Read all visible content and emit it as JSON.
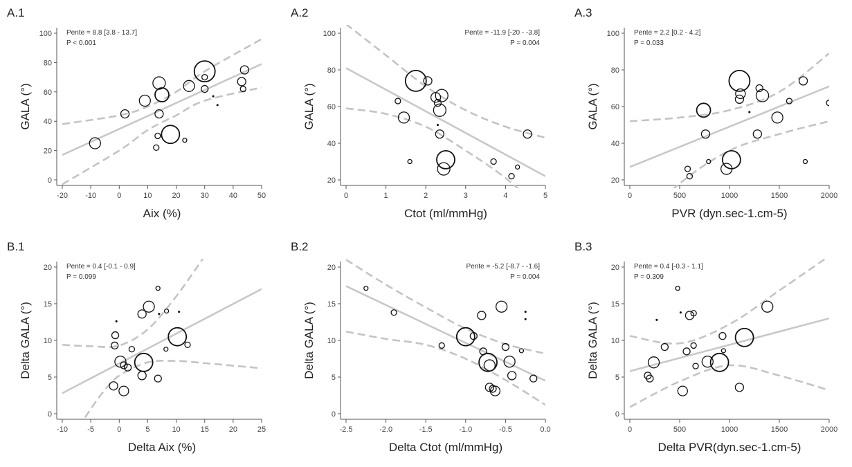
{
  "chart_data": [
    {
      "id": "A.1",
      "label": "A.1",
      "type": "scatter",
      "xlabel": "Aix (%)",
      "ylabel": "GALA (°)",
      "xlim": [
        -20,
        50
      ],
      "ylim": [
        0,
        100
      ],
      "xticks": [
        -20,
        -10,
        0,
        10,
        20,
        30,
        40,
        50
      ],
      "yticks": [
        0,
        20,
        40,
        60,
        80,
        100
      ],
      "stats": [
        "Pente = 8.8 [3.8 - 13.7]",
        "P < 0.001"
      ],
      "stats_position": "top-left",
      "fit": [
        [
          -20,
          17
        ],
        [
          50,
          79
        ]
      ],
      "ci_upper": [
        [
          -20,
          38
        ],
        [
          0,
          44
        ],
        [
          10,
          50
        ],
        [
          20,
          60
        ],
        [
          30,
          74
        ],
        [
          50,
          96
        ]
      ],
      "ci_lower": [
        [
          -20,
          -3
        ],
        [
          0,
          20
        ],
        [
          10,
          34
        ],
        [
          20,
          44
        ],
        [
          30,
          54
        ],
        [
          50,
          63
        ]
      ],
      "points": [
        {
          "x": -8.5,
          "y": 25,
          "size": 8
        },
        {
          "x": 2,
          "y": 45,
          "size": 6
        },
        {
          "x": 9,
          "y": 54,
          "size": 8
        },
        {
          "x": 14,
          "y": 66,
          "size": 9
        },
        {
          "x": 15,
          "y": 58,
          "size": 10
        },
        {
          "x": 14,
          "y": 45,
          "size": 6
        },
        {
          "x": 13.5,
          "y": 30,
          "size": 4
        },
        {
          "x": 13,
          "y": 22,
          "size": 4
        },
        {
          "x": 18,
          "y": 31,
          "size": 13
        },
        {
          "x": 23,
          "y": 27,
          "size": 3
        },
        {
          "x": 24.5,
          "y": 64,
          "size": 8
        },
        {
          "x": 30,
          "y": 74,
          "size": 15
        },
        {
          "x": 30,
          "y": 62,
          "size": 5
        },
        {
          "x": 30,
          "y": 70,
          "size": 4
        },
        {
          "x": 33,
          "y": 57,
          "size": 1
        },
        {
          "x": 34.5,
          "y": 51,
          "size": 1
        },
        {
          "x": 43,
          "y": 67,
          "size": 6
        },
        {
          "x": 44,
          "y": 75,
          "size": 6
        },
        {
          "x": 43.5,
          "y": 62,
          "size": 4
        }
      ]
    },
    {
      "id": "A.2",
      "label": "A.2",
      "type": "scatter",
      "xlabel": "Ctot (ml/mmHg)",
      "ylabel": "GALA (°)",
      "xlim": [
        0,
        5
      ],
      "ylim": [
        20,
        100
      ],
      "xticks": [
        0,
        1,
        2,
        3,
        4,
        5
      ],
      "yticks": [
        20,
        40,
        60,
        80,
        100
      ],
      "stats": [
        "Pente = -11.9 [-20 - -3.8]",
        "P = 0.004"
      ],
      "stats_position": "top-right",
      "fit": [
        [
          0,
          81
        ],
        [
          5,
          22
        ]
      ],
      "ci_upper": [
        [
          0,
          105
        ],
        [
          1,
          88
        ],
        [
          2,
          71
        ],
        [
          3,
          58
        ],
        [
          4,
          49
        ],
        [
          5,
          43
        ]
      ],
      "ci_lower": [
        [
          0,
          59
        ],
        [
          1,
          56
        ],
        [
          2,
          49
        ],
        [
          3,
          36
        ],
        [
          4,
          21
        ],
        [
          5,
          2
        ]
      ],
      "points": [
        {
          "x": 1.3,
          "y": 63,
          "size": 4
        },
        {
          "x": 1.45,
          "y": 54,
          "size": 8
        },
        {
          "x": 1.6,
          "y": 30,
          "size": 3
        },
        {
          "x": 1.75,
          "y": 74,
          "size": 15
        },
        {
          "x": 2.05,
          "y": 74,
          "size": 6
        },
        {
          "x": 2.25,
          "y": 65,
          "size": 7
        },
        {
          "x": 2.3,
          "y": 62,
          "size": 5
        },
        {
          "x": 2.4,
          "y": 66,
          "size": 9
        },
        {
          "x": 2.35,
          "y": 58,
          "size": 9
        },
        {
          "x": 2.35,
          "y": 45,
          "size": 6
        },
        {
          "x": 2.45,
          "y": 26,
          "size": 9
        },
        {
          "x": 2.5,
          "y": 31,
          "size": 13
        },
        {
          "x": 2.3,
          "y": 50,
          "size": 1
        },
        {
          "x": 3.7,
          "y": 30,
          "size": 4
        },
        {
          "x": 4.15,
          "y": 22,
          "size": 4
        },
        {
          "x": 4.3,
          "y": 27,
          "size": 3
        },
        {
          "x": 4.55,
          "y": 45,
          "size": 6
        }
      ]
    },
    {
      "id": "A.3",
      "label": "A.3",
      "type": "scatter",
      "xlabel": "PVR (dyn.sec-1.cm-5)",
      "ylabel": "GALA (°)",
      "xlim": [
        0,
        2000
      ],
      "ylim": [
        20,
        100
      ],
      "xticks": [
        0,
        500,
        1000,
        1500,
        2000
      ],
      "yticks": [
        20,
        40,
        60,
        80,
        100
      ],
      "stats": [
        "Pente = 2.2 [0.2 - 4.2]",
        "P = 0.033"
      ],
      "stats_position": "top-left",
      "fit": [
        [
          0,
          27
        ],
        [
          2000,
          71
        ]
      ],
      "ci_upper": [
        [
          0,
          52
        ],
        [
          500,
          54
        ],
        [
          1000,
          58
        ],
        [
          1500,
          68
        ],
        [
          2000,
          89
        ]
      ],
      "ci_lower": [
        [
          0,
          -8
        ],
        [
          500,
          18
        ],
        [
          1000,
          36
        ],
        [
          1500,
          45
        ],
        [
          2000,
          52
        ]
      ],
      "points": [
        {
          "x": 580,
          "y": 26,
          "size": 4
        },
        {
          "x": 600,
          "y": 22,
          "size": 4
        },
        {
          "x": 740,
          "y": 58,
          "size": 10
        },
        {
          "x": 760,
          "y": 45,
          "size": 6
        },
        {
          "x": 790,
          "y": 30,
          "size": 3
        },
        {
          "x": 970,
          "y": 26,
          "size": 8
        },
        {
          "x": 1020,
          "y": 31,
          "size": 13
        },
        {
          "x": 1100,
          "y": 74,
          "size": 15
        },
        {
          "x": 1100,
          "y": 64,
          "size": 6
        },
        {
          "x": 1110,
          "y": 67,
          "size": 7
        },
        {
          "x": 1200,
          "y": 57,
          "size": 1
        },
        {
          "x": 1280,
          "y": 45,
          "size": 6
        },
        {
          "x": 1300,
          "y": 70,
          "size": 5
        },
        {
          "x": 1330,
          "y": 66,
          "size": 9
        },
        {
          "x": 1480,
          "y": 54,
          "size": 8
        },
        {
          "x": 1600,
          "y": 63,
          "size": 4
        },
        {
          "x": 1740,
          "y": 74,
          "size": 6
        },
        {
          "x": 1760,
          "y": 30,
          "size": 3
        },
        {
          "x": 2000,
          "y": 62,
          "size": 4
        }
      ]
    },
    {
      "id": "B.1",
      "label": "B.1",
      "type": "scatter",
      "xlabel": "Delta Aix (%)",
      "ylabel": "Delta GALA (°)",
      "xlim": [
        -10,
        25
      ],
      "ylim": [
        0,
        20
      ],
      "xticks": [
        -10,
        -5,
        0,
        5,
        10,
        15,
        20,
        25
      ],
      "yticks": [
        0,
        5,
        10,
        15,
        20
      ],
      "stats": [
        "Pente = 0.4 [-0.1 - 0.9]",
        "P = 0.099"
      ],
      "stats_position": "top-left",
      "fit": [
        [
          -10,
          2.8
        ],
        [
          25,
          17
        ]
      ],
      "ci_upper": [
        [
          -10,
          9.4
        ],
        [
          -5,
          9.2
        ],
        [
          0,
          9.3
        ],
        [
          5,
          11.5
        ],
        [
          10,
          16
        ],
        [
          15,
          21.5
        ]
      ],
      "ci_lower": [
        [
          -6,
          -0.5
        ],
        [
          -3,
          2.8
        ],
        [
          0,
          5.2
        ],
        [
          5,
          7.0
        ],
        [
          10,
          7.2
        ],
        [
          15,
          6.9
        ],
        [
          25,
          6.2
        ]
      ],
      "points": [
        {
          "x": -1,
          "y": 3.8,
          "size": 6
        },
        {
          "x": 0.8,
          "y": 3.1,
          "size": 7
        },
        {
          "x": -0.8,
          "y": 9.3,
          "size": 5
        },
        {
          "x": -0.7,
          "y": 10.7,
          "size": 5
        },
        {
          "x": -0.5,
          "y": 12.6,
          "size": 1
        },
        {
          "x": 0.2,
          "y": 7.1,
          "size": 8
        },
        {
          "x": 0.8,
          "y": 6.6,
          "size": 5
        },
        {
          "x": 1.5,
          "y": 6.3,
          "size": 5
        },
        {
          "x": 2.2,
          "y": 8.8,
          "size": 4
        },
        {
          "x": 4,
          "y": 5.2,
          "size": 6
        },
        {
          "x": 4.3,
          "y": 7.0,
          "size": 13
        },
        {
          "x": 4.0,
          "y": 13.6,
          "size": 6
        },
        {
          "x": 5.2,
          "y": 14.6,
          "size": 8
        },
        {
          "x": 6.8,
          "y": 4.8,
          "size": 5
        },
        {
          "x": 6.8,
          "y": 17.1,
          "size": 3
        },
        {
          "x": 7.0,
          "y": 13.6,
          "size": 1
        },
        {
          "x": 8.2,
          "y": 8.8,
          "size": 3
        },
        {
          "x": 8.3,
          "y": 14.0,
          "size": 3
        },
        {
          "x": 10.2,
          "y": 10.5,
          "size": 13
        },
        {
          "x": 12,
          "y": 9.4,
          "size": 4
        },
        {
          "x": 10.5,
          "y": 13.9,
          "size": 1
        }
      ]
    },
    {
      "id": "B.2",
      "label": "B.2",
      "type": "scatter",
      "xlabel": "Delta Ctot (ml/mmHg)",
      "ylabel": "Delta GALA (°)",
      "xlim": [
        -2.5,
        0
      ],
      "ylim": [
        0,
        20
      ],
      "xticks": [
        -2.5,
        -2.0,
        -1.5,
        -1.0,
        -0.5,
        0.0
      ],
      "yticks": [
        0,
        5,
        10,
        15,
        20
      ],
      "stats": [
        "Pente = -5.2 [-8.7 - -1.6]",
        "P = 0.004"
      ],
      "stats_position": "top-right",
      "fit": [
        [
          -2.5,
          17.4
        ],
        [
          0,
          4.5
        ]
      ],
      "ci_upper": [
        [
          -2.5,
          21
        ],
        [
          -2.0,
          17.6
        ],
        [
          -1.5,
          14.5
        ],
        [
          -1.0,
          11.6
        ],
        [
          -0.5,
          9.5
        ],
        [
          0,
          8.2
        ]
      ],
      "ci_lower": [
        [
          -2.5,
          11.2
        ],
        [
          -2.0,
          10.2
        ],
        [
          -1.5,
          9.4
        ],
        [
          -1.0,
          7.5
        ],
        [
          -0.5,
          4.6
        ],
        [
          0,
          1.2
        ]
      ],
      "points": [
        {
          "x": -2.25,
          "y": 17.1,
          "size": 3
        },
        {
          "x": -1.9,
          "y": 13.8,
          "size": 4
        },
        {
          "x": -1.3,
          "y": 9.3,
          "size": 4
        },
        {
          "x": -1.0,
          "y": 10.5,
          "size": 13
        },
        {
          "x": -0.9,
          "y": 10.6,
          "size": 5
        },
        {
          "x": -0.8,
          "y": 13.4,
          "size": 6
        },
        {
          "x": -0.78,
          "y": 8.5,
          "size": 5
        },
        {
          "x": -0.72,
          "y": 7.0,
          "size": 13
        },
        {
          "x": -0.7,
          "y": 6.6,
          "size": 8
        },
        {
          "x": -0.7,
          "y": 3.6,
          "size": 6
        },
        {
          "x": -0.66,
          "y": 3.4,
          "size": 5
        },
        {
          "x": -0.63,
          "y": 3.1,
          "size": 7
        },
        {
          "x": -0.55,
          "y": 14.6,
          "size": 8
        },
        {
          "x": -0.5,
          "y": 9.1,
          "size": 5
        },
        {
          "x": -0.45,
          "y": 7.1,
          "size": 8
        },
        {
          "x": -0.42,
          "y": 5.2,
          "size": 6
        },
        {
          "x": -0.3,
          "y": 8.6,
          "size": 3
        },
        {
          "x": -0.25,
          "y": 13.9,
          "size": 1
        },
        {
          "x": -0.25,
          "y": 12.9,
          "size": 1
        },
        {
          "x": -0.15,
          "y": 4.8,
          "size": 5
        }
      ]
    },
    {
      "id": "B.3",
      "label": "B.3",
      "type": "scatter",
      "xlabel": "Delta PVR(dyn.sec-1.cm-5)",
      "ylabel": "Delta GALA (°)",
      "xlim": [
        0,
        2000
      ],
      "ylim": [
        0,
        20
      ],
      "xticks": [
        0,
        500,
        1000,
        1500,
        2000
      ],
      "yticks": [
        0,
        5,
        10,
        15,
        20
      ],
      "stats": [
        "Pente = 0.4 [-0.3 - 1.1]",
        "P = 0.309"
      ],
      "stats_position": "top-left",
      "fit": [
        [
          0,
          5.8
        ],
        [
          2000,
          13
        ]
      ],
      "ci_upper": [
        [
          0,
          10.6
        ],
        [
          500,
          9.6
        ],
        [
          1000,
          12.2
        ],
        [
          1500,
          16.8
        ],
        [
          2000,
          21.5
        ]
      ],
      "ci_lower": [
        [
          0,
          0.9
        ],
        [
          500,
          4.4
        ],
        [
          1000,
          6.6
        ],
        [
          1500,
          5.2
        ],
        [
          2000,
          3.2
        ]
      ],
      "points": [
        {
          "x": 180,
          "y": 5.2,
          "size": 5
        },
        {
          "x": 200,
          "y": 4.8,
          "size": 5
        },
        {
          "x": 240,
          "y": 7.0,
          "size": 8
        },
        {
          "x": 270,
          "y": 12.8,
          "size": 1
        },
        {
          "x": 350,
          "y": 9.1,
          "size": 5
        },
        {
          "x": 480,
          "y": 17.1,
          "size": 3
        },
        {
          "x": 510,
          "y": 13.8,
          "size": 1
        },
        {
          "x": 530,
          "y": 3.1,
          "size": 7
        },
        {
          "x": 570,
          "y": 8.5,
          "size": 5
        },
        {
          "x": 600,
          "y": 13.4,
          "size": 6
        },
        {
          "x": 640,
          "y": 13.7,
          "size": 4
        },
        {
          "x": 640,
          "y": 9.3,
          "size": 4
        },
        {
          "x": 660,
          "y": 6.5,
          "size": 4
        },
        {
          "x": 780,
          "y": 7.1,
          "size": 8
        },
        {
          "x": 900,
          "y": 7.0,
          "size": 13
        },
        {
          "x": 930,
          "y": 10.6,
          "size": 5
        },
        {
          "x": 940,
          "y": 8.6,
          "size": 3
        },
        {
          "x": 1100,
          "y": 3.6,
          "size": 6
        },
        {
          "x": 1150,
          "y": 10.4,
          "size": 13
        },
        {
          "x": 1380,
          "y": 14.6,
          "size": 8
        }
      ]
    }
  ]
}
